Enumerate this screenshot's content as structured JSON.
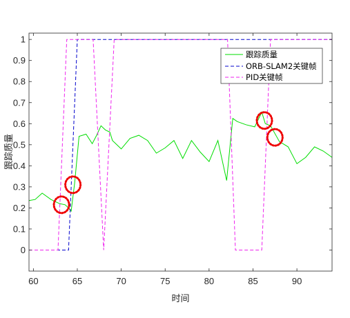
{
  "chart_data": {
    "type": "line",
    "title": "",
    "xlabel": "时间",
    "ylabel": "跟踪质量",
    "xlim": [
      59.5,
      94
    ],
    "ylim": [
      -0.1,
      1.03
    ],
    "xticks": [
      60,
      65,
      70,
      75,
      80,
      85,
      90
    ],
    "yticks": [
      0,
      0.1,
      0.2,
      0.3,
      0.4,
      0.5,
      0.6,
      0.7,
      0.8,
      0.9,
      1
    ],
    "legend_position": "top-right",
    "grid": false,
    "series": [
      {
        "name": "跟踪质量",
        "color": "#00dd00",
        "dash": "solid",
        "x": [
          59.5,
          60.2,
          61,
          62,
          63,
          63.6,
          64,
          64.3,
          64.7,
          65.2,
          66,
          66.7,
          67.2,
          67.7,
          68.2,
          68.7,
          69,
          70,
          71,
          72,
          73,
          74,
          75,
          76,
          77,
          78,
          79,
          80,
          81,
          82,
          82.7,
          83.2,
          84.2,
          85.2,
          86,
          86.4,
          87,
          88,
          89,
          90,
          91,
          92,
          93,
          94
        ],
        "y": [
          0.235,
          0.24,
          0.27,
          0.24,
          0.22,
          0.215,
          0.2,
          0.185,
          0.32,
          0.54,
          0.55,
          0.505,
          0.545,
          0.59,
          0.57,
          0.56,
          0.52,
          0.48,
          0.53,
          0.545,
          0.52,
          0.46,
          0.485,
          0.52,
          0.435,
          0.52,
          0.465,
          0.42,
          0.52,
          0.33,
          0.625,
          0.61,
          0.595,
          0.585,
          0.655,
          0.6,
          0.59,
          0.515,
          0.49,
          0.41,
          0.44,
          0.49,
          0.47,
          0.44
        ]
      },
      {
        "name": "ORB-SLAM2关键帧",
        "color": "#0000cc",
        "dash": "5,3",
        "x": [
          59.5,
          64,
          65,
          94
        ],
        "y": [
          0,
          0,
          1,
          1
        ]
      },
      {
        "name": "PID关键帧",
        "color": "#ee22ee",
        "dash": "5,3",
        "x": [
          59.5,
          62.8,
          63.8,
          66.8,
          68,
          69.2,
          82.1,
          83,
          86,
          87,
          94
        ],
        "y": [
          0,
          0,
          1,
          1,
          0,
          1,
          1,
          0,
          0,
          1,
          1
        ]
      }
    ],
    "annotations": [
      {
        "type": "red-dotted-circle",
        "x": 63.2,
        "y": 0.215
      },
      {
        "type": "red-dotted-circle",
        "x": 64.5,
        "y": 0.31
      },
      {
        "type": "red-dotted-circle",
        "x": 86.3,
        "y": 0.615
      },
      {
        "type": "red-dotted-circle",
        "x": 87.5,
        "y": 0.535
      }
    ]
  }
}
